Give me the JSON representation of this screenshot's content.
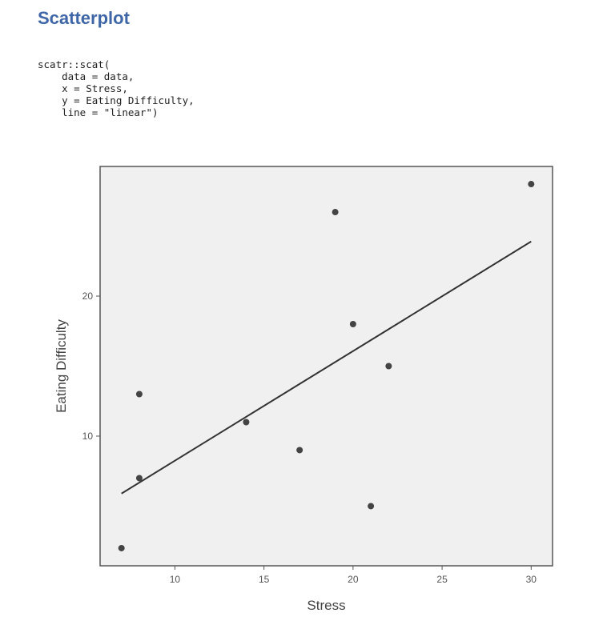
{
  "heading": "Scatterplot",
  "code": "scatr::scat(\n    data = data,\n    x = Stress,\n    y = Eating Difficulty,\n    line = \"linear\")",
  "chart_data": {
    "type": "scatter",
    "title": "",
    "xlabel": "Stress",
    "ylabel": "Eating Difficulty",
    "xlim": [
      5.8,
      31.2
    ],
    "ylim": [
      0.74,
      29.26
    ],
    "xticks": [
      10,
      15,
      20,
      25,
      30
    ],
    "yticks": [
      10,
      20
    ],
    "grid": false,
    "points": [
      {
        "x": 7,
        "y": 2
      },
      {
        "x": 8,
        "y": 7
      },
      {
        "x": 8,
        "y": 13
      },
      {
        "x": 14,
        "y": 11
      },
      {
        "x": 17,
        "y": 9
      },
      {
        "x": 19,
        "y": 26
      },
      {
        "x": 20,
        "y": 18
      },
      {
        "x": 21,
        "y": 5
      },
      {
        "x": 22,
        "y": 15
      },
      {
        "x": 30,
        "y": 28
      }
    ],
    "fit_line": {
      "type": "linear",
      "x": [
        7,
        30
      ],
      "y": [
        5.9,
        23.9
      ]
    },
    "colors": {
      "panel": "#f0f0f0",
      "points": "#444444",
      "line": "#333333"
    }
  }
}
